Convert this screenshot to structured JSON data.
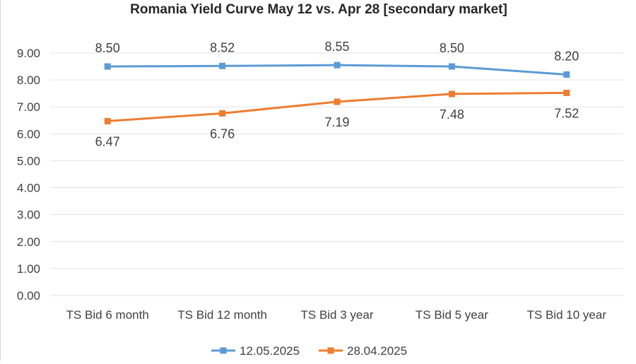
{
  "chart_data": {
    "type": "line",
    "title": "Romania Yield Curve May 12 vs. Apr 28 [secondary market]",
    "categories": [
      "TS Bid 6 month",
      "TS Bid 12 month",
      "TS Bid 3 year",
      "TS Bid 5 year",
      "TS Bid 10 year"
    ],
    "yticks": [
      "0.00",
      "1.00",
      "2.00",
      "3.00",
      "4.00",
      "5.00",
      "6.00",
      "7.00",
      "8.00",
      "9.00"
    ],
    "ylim": [
      0,
      9
    ],
    "grid": true,
    "legend_position": "bottom",
    "series": [
      {
        "name": "12.05.2025",
        "color": "#5b9bd5",
        "values": [
          8.5,
          8.52,
          8.55,
          8.5,
          8.2
        ],
        "labels": [
          "8.50",
          "8.52",
          "8.55",
          "8.50",
          "8.20"
        ],
        "label_position": "above"
      },
      {
        "name": "28.04.2025",
        "color": "#ed7d31",
        "values": [
          6.47,
          6.76,
          7.19,
          7.48,
          7.52
        ],
        "labels": [
          "6.47",
          "6.76",
          "7.19",
          "7.48",
          "7.52"
        ],
        "label_position": "below"
      }
    ]
  }
}
